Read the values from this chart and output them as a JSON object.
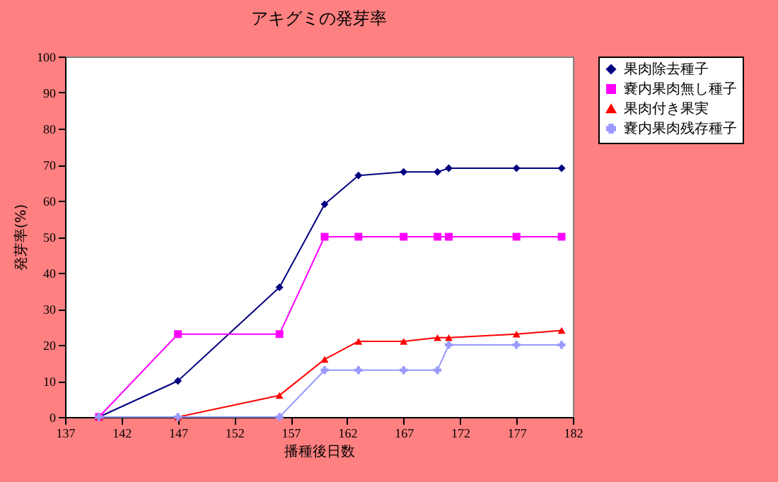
{
  "chart_data": {
    "type": "line",
    "title": "アキグミの発芽率",
    "xlabel": "播種後日数",
    "ylabel": "発芽率(%)",
    "x": [
      140,
      147,
      156,
      160,
      163,
      167,
      170,
      171,
      177,
      181
    ],
    "series": [
      {
        "name": "果肉除去種子",
        "color": "#000080",
        "marker": "diamond",
        "values": [
          0,
          10,
          36,
          59,
          67,
          68,
          68,
          69,
          69,
          69
        ]
      },
      {
        "name": "嚢内果肉無し種子",
        "color": "#ff00ff",
        "marker": "square",
        "values": [
          0,
          23,
          23,
          50,
          50,
          50,
          50,
          50,
          50,
          50
        ]
      },
      {
        "name": "果肉付き果実",
        "color": "#ff0000",
        "marker": "triangle",
        "values": [
          0,
          0,
          6,
          16,
          21,
          21,
          22,
          22,
          23,
          24
        ]
      },
      {
        "name": "嚢内果肉残存種子",
        "color": "#9999ff",
        "marker": "cross",
        "values": [
          0,
          0,
          0,
          13,
          13,
          13,
          13,
          20,
          20,
          20
        ]
      }
    ],
    "xlim": [
      137,
      182
    ],
    "xticks": [
      137,
      142,
      147,
      152,
      157,
      162,
      167,
      172,
      177,
      182
    ],
    "ylim": [
      0,
      100
    ],
    "yticks": [
      0,
      10,
      20,
      30,
      40,
      50,
      60,
      70,
      80,
      90,
      100
    ],
    "grid": false,
    "legend": "right"
  }
}
